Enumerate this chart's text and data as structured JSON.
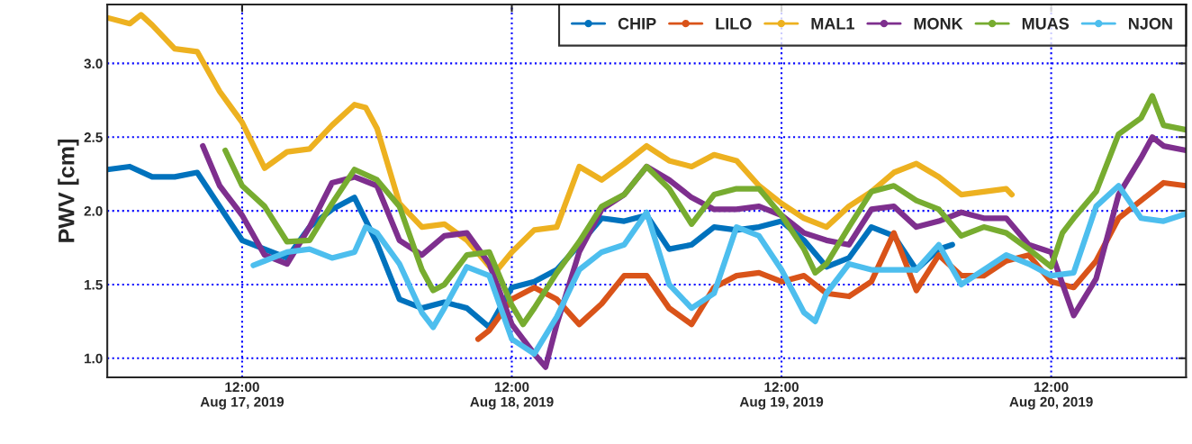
{
  "chart_data": {
    "type": "line",
    "ylabel": "PWV [cm]",
    "xlim": [
      "2019-08-17T00:00",
      "2019-08-21T00:00"
    ],
    "ylim": [
      0.87,
      3.4
    ],
    "xticks": [
      {
        "value": "2019-08-17T12:00",
        "label": "12:00\nAug 17, 2019"
      },
      {
        "value": "2019-08-18T12:00",
        "label": "12:00\nAug 18, 2019"
      },
      {
        "value": "2019-08-19T12:00",
        "label": "12:00\nAug 19, 2019"
      },
      {
        "value": "2019-08-20T12:00",
        "label": "12:00\nAug 20, 2019"
      }
    ],
    "yticks": [
      {
        "value": 1,
        "label": "1.0"
      },
      1.5,
      {
        "value": 2,
        "label": "2.0"
      },
      2.5,
      {
        "value": 3,
        "label": "3.0"
      }
    ],
    "grid": true,
    "legend": "top right",
    "line_style": "solid",
    "series": [
      {
        "name": "CHIP",
        "color": "#0072bd",
        "x": [
          "2019-08-17T00:00",
          "2019-08-17T02:00",
          "2019-08-17T04:00",
          "2019-08-17T06:00",
          "2019-08-17T08:00",
          "2019-08-17T10:00",
          "2019-08-17T12:00",
          "2019-08-17T14:00",
          "2019-08-17T16:00",
          "2019-08-17T18:00",
          "2019-08-17T20:00",
          "2019-08-17T22:00",
          "2019-08-18T00:00",
          "2019-08-18T02:00",
          "2019-08-18T04:00",
          "2019-08-18T06:00",
          "2019-08-18T08:00",
          "2019-08-18T10:00",
          "2019-08-18T12:00",
          "2019-08-18T14:00",
          "2019-08-18T16:00",
          "2019-08-18T18:00",
          "2019-08-18T20:00",
          "2019-08-18T22:00",
          "2019-08-19T00:00",
          "2019-08-19T02:00",
          "2019-08-19T04:00",
          "2019-08-19T06:00",
          "2019-08-19T08:00",
          "2019-08-19T10:00",
          "2019-08-19T12:00",
          "2019-08-19T14:00",
          "2019-08-19T16:00",
          "2019-08-19T18:00",
          "2019-08-19T20:00",
          "2019-08-19T22:00",
          "2019-08-20T00:00",
          "2019-08-20T02:00",
          "2019-08-20T03:12"
        ],
        "values": [
          2.28,
          2.3,
          2.23,
          2.23,
          2.26,
          2.03,
          1.8,
          1.74,
          1.68,
          1.89,
          2.01,
          2.09,
          1.78,
          1.4,
          1.34,
          1.38,
          1.34,
          1.21,
          1.48,
          1.52,
          1.6,
          1.77,
          1.95,
          1.93,
          1.97,
          1.74,
          1.77,
          1.89,
          1.87,
          1.89,
          1.93,
          1.8,
          1.62,
          1.68,
          1.89,
          1.83,
          1.6,
          1.74,
          1.77
        ]
      },
      {
        "name": "LILO",
        "color": "#d95319",
        "x": [
          "2019-08-18T09:00",
          "2019-08-18T10:00",
          "2019-08-18T12:00",
          "2019-08-18T14:00",
          "2019-08-18T16:00",
          "2019-08-18T18:00",
          "2019-08-18T20:00",
          "2019-08-18T22:00",
          "2019-08-19T00:00",
          "2019-08-19T02:00",
          "2019-08-19T04:00",
          "2019-08-19T06:00",
          "2019-08-19T08:00",
          "2019-08-19T10:00",
          "2019-08-19T12:00",
          "2019-08-19T14:00",
          "2019-08-19T16:00",
          "2019-08-19T18:00",
          "2019-08-19T20:00",
          "2019-08-19T22:00",
          "2019-08-20T00:00",
          "2019-08-20T02:00",
          "2019-08-20T04:00",
          "2019-08-20T06:00",
          "2019-08-20T08:00",
          "2019-08-20T10:00",
          "2019-08-20T12:00",
          "2019-08-20T14:00",
          "2019-08-20T16:00",
          "2019-08-20T18:00",
          "2019-08-20T20:00",
          "2019-08-20T22:00",
          "2019-08-21T00:00"
        ],
        "values": [
          1.13,
          1.19,
          1.4,
          1.48,
          1.4,
          1.23,
          1.37,
          1.56,
          1.56,
          1.34,
          1.23,
          1.48,
          1.56,
          1.58,
          1.52,
          1.56,
          1.44,
          1.42,
          1.52,
          1.85,
          1.46,
          1.7,
          1.56,
          1.56,
          1.66,
          1.7,
          1.52,
          1.48,
          1.66,
          1.95,
          2.07,
          2.19,
          2.17
        ]
      },
      {
        "name": "MAL1",
        "color": "#edb120",
        "x": [
          "2019-08-17T00:00",
          "2019-08-17T02:00",
          "2019-08-17T03:00",
          "2019-08-17T04:00",
          "2019-08-17T06:00",
          "2019-08-17T08:00",
          "2019-08-17T10:00",
          "2019-08-17T12:00",
          "2019-08-17T14:00",
          "2019-08-17T16:00",
          "2019-08-17T18:00",
          "2019-08-17T20:00",
          "2019-08-17T22:00",
          "2019-08-17T23:00",
          "2019-08-18T00:00",
          "2019-08-18T02:00",
          "2019-08-18T04:00",
          "2019-08-18T06:00",
          "2019-08-18T08:00",
          "2019-08-18T10:30",
          "2019-08-18T12:00",
          "2019-08-18T14:00",
          "2019-08-18T16:00",
          "2019-08-18T18:00",
          "2019-08-18T20:00",
          "2019-08-18T22:00",
          "2019-08-19T00:00",
          "2019-08-19T02:00",
          "2019-08-19T04:00",
          "2019-08-19T06:00",
          "2019-08-19T08:00",
          "2019-08-19T10:00",
          "2019-08-19T12:00",
          "2019-08-19T14:00",
          "2019-08-19T16:00",
          "2019-08-19T18:00",
          "2019-08-19T20:00",
          "2019-08-19T22:00",
          "2019-08-20T00:00",
          "2019-08-20T02:00",
          "2019-08-20T04:00",
          "2019-08-20T06:00",
          "2019-08-20T08:00",
          "2019-08-20T08:30"
        ],
        "values": [
          3.31,
          3.27,
          3.33,
          3.26,
          3.1,
          3.08,
          2.81,
          2.6,
          2.29,
          2.4,
          2.42,
          2.58,
          2.72,
          2.7,
          2.56,
          2.05,
          1.89,
          1.91,
          1.8,
          1.58,
          1.72,
          1.87,
          1.89,
          2.3,
          2.21,
          2.32,
          2.44,
          2.34,
          2.3,
          2.38,
          2.34,
          2.17,
          2.05,
          1.95,
          1.89,
          2.03,
          2.13,
          2.26,
          2.32,
          2.23,
          2.11,
          2.13,
          2.15,
          2.11
        ]
      },
      {
        "name": "MONK",
        "color": "#7e2f8e",
        "x": [
          "2019-08-17T08:30",
          "2019-08-17T10:00",
          "2019-08-17T12:00",
          "2019-08-17T14:00",
          "2019-08-17T16:00",
          "2019-08-17T18:00",
          "2019-08-17T20:00",
          "2019-08-17T22:00",
          "2019-08-18T00:00",
          "2019-08-18T02:00",
          "2019-08-18T04:00",
          "2019-08-18T06:00",
          "2019-08-18T08:00",
          "2019-08-18T10:00",
          "2019-08-18T12:00",
          "2019-08-18T14:00",
          "2019-08-18T15:00",
          "2019-08-18T16:00",
          "2019-08-18T18:00",
          "2019-08-18T20:00",
          "2019-08-18T22:00",
          "2019-08-19T00:00",
          "2019-08-19T02:00",
          "2019-08-19T04:00",
          "2019-08-19T06:00",
          "2019-08-19T08:00",
          "2019-08-19T10:00",
          "2019-08-19T12:00",
          "2019-08-19T14:00",
          "2019-08-19T16:00",
          "2019-08-19T18:00",
          "2019-08-19T20:00",
          "2019-08-19T22:00",
          "2019-08-20T00:00",
          "2019-08-20T02:00",
          "2019-08-20T04:00",
          "2019-08-20T06:00",
          "2019-08-20T08:00",
          "2019-08-20T10:00",
          "2019-08-20T12:00",
          "2019-08-20T14:00",
          "2019-08-20T16:00",
          "2019-08-20T18:00",
          "2019-08-20T20:00",
          "2019-08-20T21:00",
          "2019-08-20T22:00",
          "2019-08-21T00:00"
        ],
        "values": [
          2.44,
          2.17,
          1.97,
          1.7,
          1.64,
          1.89,
          2.19,
          2.23,
          2.17,
          1.8,
          1.7,
          1.83,
          1.85,
          1.64,
          1.23,
          1.03,
          0.94,
          1.23,
          1.72,
          2.01,
          2.11,
          2.3,
          2.21,
          2.09,
          2.01,
          2.01,
          2.03,
          1.97,
          1.85,
          1.8,
          1.77,
          2.01,
          2.03,
          1.89,
          1.93,
          1.99,
          1.95,
          1.95,
          1.77,
          1.72,
          1.29,
          1.54,
          2.11,
          2.36,
          2.5,
          2.44,
          2.41
        ]
      },
      {
        "name": "MUAS",
        "color": "#77ac30",
        "x": [
          "2019-08-17T10:30",
          "2019-08-17T12:00",
          "2019-08-17T14:00",
          "2019-08-17T16:00",
          "2019-08-17T18:00",
          "2019-08-17T20:00",
          "2019-08-17T22:00",
          "2019-08-18T00:00",
          "2019-08-18T02:00",
          "2019-08-18T04:00",
          "2019-08-18T05:00",
          "2019-08-18T06:00",
          "2019-08-18T08:00",
          "2019-08-18T10:00",
          "2019-08-18T12:00",
          "2019-08-18T13:00",
          "2019-08-18T14:00",
          "2019-08-18T16:00",
          "2019-08-18T18:00",
          "2019-08-18T20:00",
          "2019-08-18T22:00",
          "2019-08-19T00:00",
          "2019-08-19T02:00",
          "2019-08-19T04:00",
          "2019-08-19T06:00",
          "2019-08-19T08:00",
          "2019-08-19T10:00",
          "2019-08-19T12:00",
          "2019-08-19T14:00",
          "2019-08-19T15:00",
          "2019-08-19T16:00",
          "2019-08-19T18:00",
          "2019-08-19T20:00",
          "2019-08-19T22:00",
          "2019-08-20T00:00",
          "2019-08-20T02:00",
          "2019-08-20T04:00",
          "2019-08-20T06:00",
          "2019-08-20T08:00",
          "2019-08-20T10:00",
          "2019-08-20T12:00",
          "2019-08-20T13:00",
          "2019-08-20T14:00",
          "2019-08-20T16:00",
          "2019-08-20T18:00",
          "2019-08-20T20:00",
          "2019-08-20T21:00",
          "2019-08-20T22:00",
          "2019-08-21T00:00"
        ],
        "values": [
          2.41,
          2.17,
          2.03,
          1.79,
          1.8,
          2.05,
          2.28,
          2.21,
          2.03,
          1.6,
          1.46,
          1.5,
          1.7,
          1.72,
          1.36,
          1.23,
          1.34,
          1.58,
          1.79,
          2.03,
          2.11,
          2.3,
          2.15,
          1.91,
          2.11,
          2.15,
          2.15,
          1.97,
          1.74,
          1.58,
          1.64,
          1.89,
          2.13,
          2.17,
          2.07,
          2.01,
          1.83,
          1.89,
          1.85,
          1.74,
          1.62,
          1.85,
          1.95,
          2.13,
          2.52,
          2.63,
          2.78,
          2.58,
          2.55
        ]
      },
      {
        "name": "NJON",
        "color": "#4dbeee",
        "x": [
          "2019-08-17T13:00",
          "2019-08-17T14:00",
          "2019-08-17T16:00",
          "2019-08-17T18:00",
          "2019-08-17T20:00",
          "2019-08-17T22:00",
          "2019-08-17T23:00",
          "2019-08-18T00:00",
          "2019-08-18T02:00",
          "2019-08-18T04:00",
          "2019-08-18T05:00",
          "2019-08-18T06:00",
          "2019-08-18T08:00",
          "2019-08-18T10:00",
          "2019-08-18T12:00",
          "2019-08-18T14:00",
          "2019-08-18T16:00",
          "2019-08-18T18:00",
          "2019-08-18T20:00",
          "2019-08-18T22:00",
          "2019-08-19T00:00",
          "2019-08-19T02:00",
          "2019-08-19T04:00",
          "2019-08-19T06:00",
          "2019-08-19T08:00",
          "2019-08-19T10:00",
          "2019-08-19T12:00",
          "2019-08-19T14:00",
          "2019-08-19T15:00",
          "2019-08-19T16:00",
          "2019-08-19T18:00",
          "2019-08-19T20:00",
          "2019-08-19T22:00",
          "2019-08-20T00:00",
          "2019-08-20T02:00",
          "2019-08-20T04:00",
          "2019-08-20T06:00",
          "2019-08-20T08:00",
          "2019-08-20T10:00",
          "2019-08-20T12:00",
          "2019-08-20T14:00",
          "2019-08-20T16:00",
          "2019-08-20T18:00",
          "2019-08-20T20:00",
          "2019-08-20T22:00",
          "2019-08-21T00:00"
        ],
        "values": [
          1.63,
          1.66,
          1.72,
          1.74,
          1.68,
          1.72,
          1.89,
          1.85,
          1.64,
          1.31,
          1.21,
          1.34,
          1.62,
          1.56,
          1.13,
          1.03,
          1.28,
          1.6,
          1.72,
          1.77,
          1.99,
          1.5,
          1.34,
          1.44,
          1.89,
          1.83,
          1.6,
          1.31,
          1.25,
          1.44,
          1.64,
          1.6,
          1.6,
          1.6,
          1.77,
          1.5,
          1.6,
          1.7,
          1.64,
          1.56,
          1.58,
          2.03,
          2.17,
          1.95,
          1.93,
          1.98
        ]
      }
    ]
  }
}
